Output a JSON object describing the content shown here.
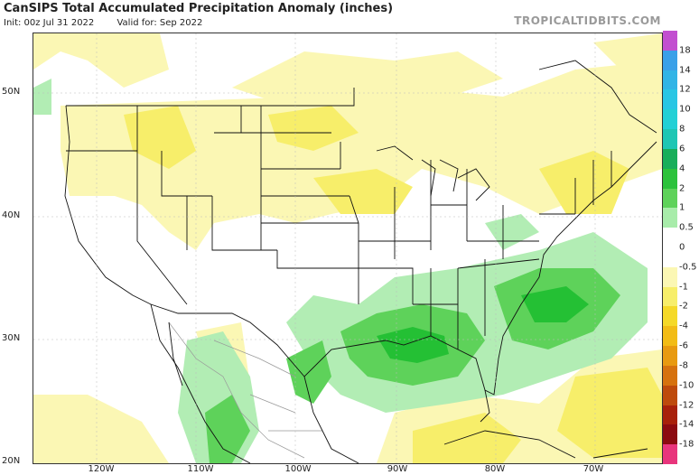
{
  "header": {
    "title": "CanSIPS Total Accumulated Precipitation Anomaly (inches)",
    "init": "Init: 00z Jul 31 2022",
    "valid": "Valid for: Sep 2022",
    "brand": "TROPICALTIDBITS.COM"
  },
  "axes": {
    "lat_labels": [
      "50N",
      "40N",
      "30N",
      "20N"
    ],
    "lon_labels": [
      "120W",
      "110W",
      "100W",
      "90W",
      "80W",
      "70W"
    ]
  },
  "colorbar": {
    "labels": [
      "18",
      "14",
      "12",
      "10",
      "8",
      "6",
      "4",
      "2",
      "1",
      "0.5",
      "0",
      "-0.5",
      "-1",
      "-2",
      "-4",
      "-6",
      "-8",
      "-10",
      "-12",
      "-14",
      "-18"
    ],
    "colors": [
      "#c24fd0",
      "#3aa0e8",
      "#31b4e6",
      "#29c6e4",
      "#23d0d6",
      "#1ec6b4",
      "#18ae5a",
      "#2cc23c",
      "#5ed25a",
      "#a8ecaa",
      "#ffffff",
      "#ffffff",
      "#fbf7b4",
      "#f7ee6a",
      "#f5d928",
      "#f2bc16",
      "#e89a10",
      "#d6720e",
      "#be4a0c",
      "#a8200a",
      "#8c0a10",
      "#e8357c"
    ]
  },
  "legend_colors": {
    "dry_light": "#fbf7b4",
    "dry_mid": "#f7ee6a",
    "dry_strong": "#f5d928",
    "wet_light": "#b2edb4",
    "wet_mid": "#5ed25a",
    "wet_strong": "#24c034"
  }
}
